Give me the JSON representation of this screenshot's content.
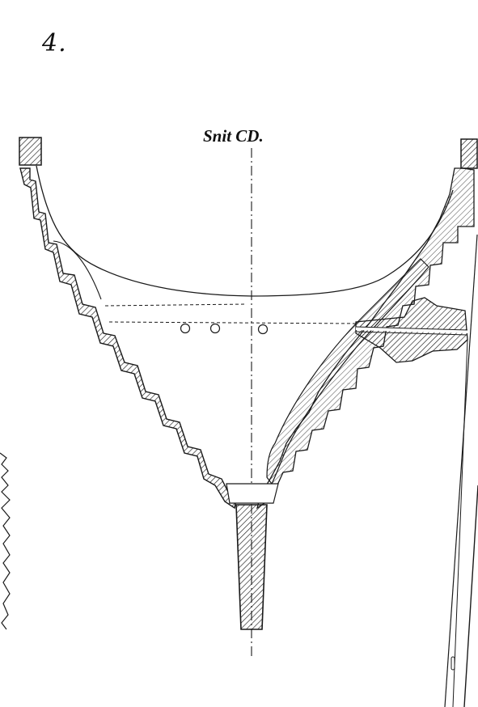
{
  "plate": {
    "number": "4."
  },
  "section": {
    "title": "Snit CD."
  },
  "colors": {
    "ink": "#1a1a1a",
    "paper": "#ffffff"
  }
}
